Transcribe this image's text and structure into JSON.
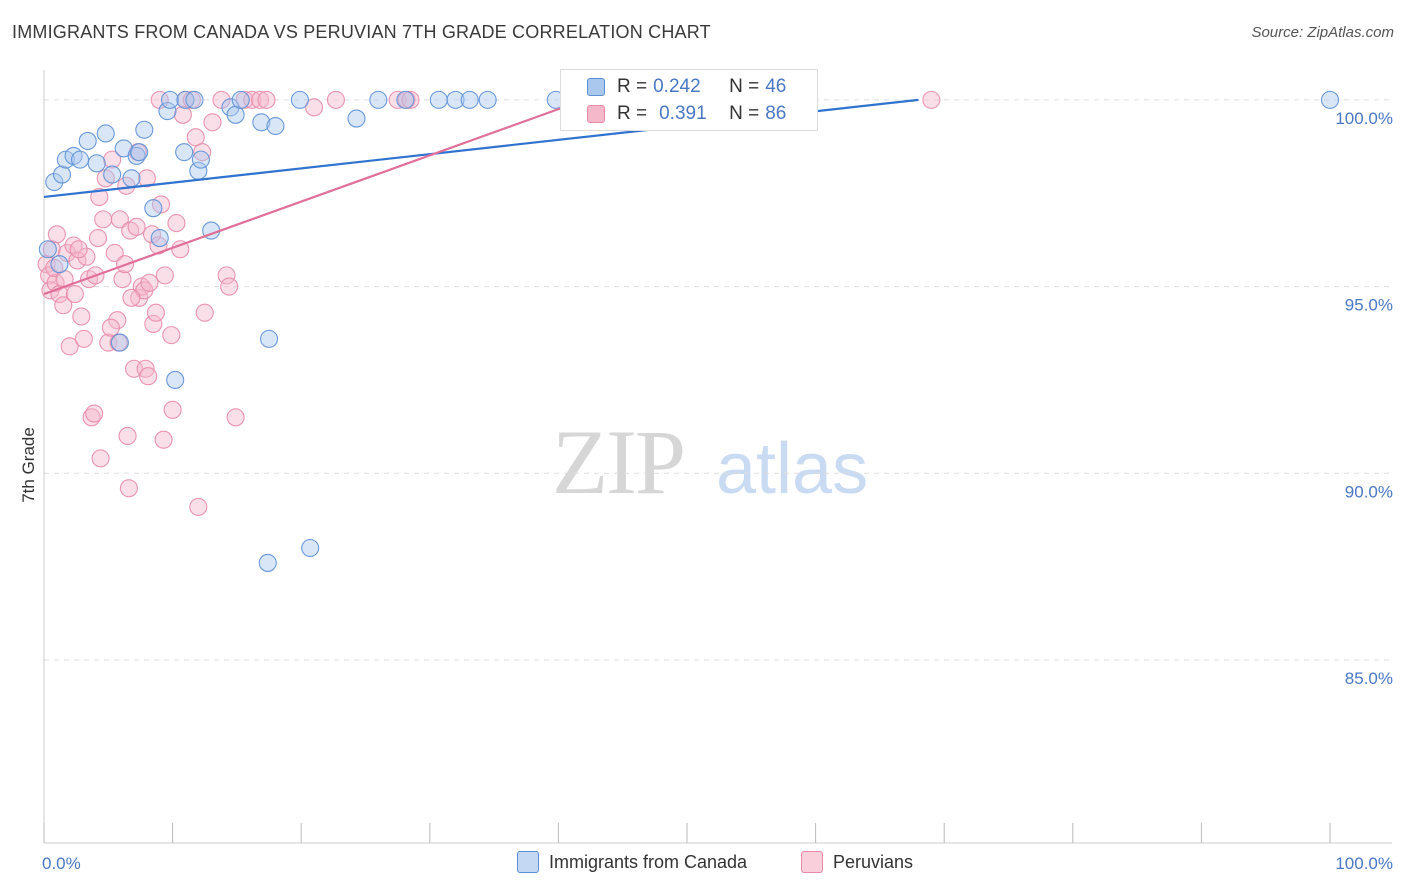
{
  "title": "IMMIGRANTS FROM CANADA VS PERUVIAN 7TH GRADE CORRELATION CHART",
  "source": "Source: ZipAtlas.com",
  "watermark": {
    "zip": "ZIP",
    "atlas": "atlas"
  },
  "legend": [
    {
      "r_label": "R = ",
      "r_value": "0.242",
      "n_label": "N = ",
      "n_value": "46"
    },
    {
      "r_label": "R = ",
      "r_value": "0.391",
      "n_label": "N = ",
      "n_value": "86"
    }
  ],
  "bottom_legend": [
    "Immigrants from Canada",
    "Peruvians"
  ],
  "colors": {
    "blue_fill": "#aac7ee",
    "blue_stroke": "#5b8fd6",
    "blue_line": "#2f73cf",
    "pink_fill": "#f5b8cb",
    "pink_stroke": "#e88aa8",
    "pink_line": "#e0709a",
    "grid": "#dddddd",
    "tick_text": "#4a78c4"
  },
  "chart_data": {
    "type": "scatter",
    "title": "IMMIGRANTS FROM CANADA VS PERUVIAN 7TH GRADE CORRELATION CHART",
    "xlabel": "",
    "ylabel": "7th Grade",
    "xlim": [
      0,
      100
    ],
    "ylim": [
      80.1,
      100.8
    ],
    "x_tick_labels": [
      "0.0%",
      "100.0%"
    ],
    "y_ticks": [
      100,
      95,
      90,
      85
    ],
    "y_tick_labels": [
      "100.0%",
      "95.0%",
      "90.0%",
      "85.0%"
    ],
    "grid": true,
    "series": [
      {
        "name": "Immigrants from Canada",
        "r": 0.242,
        "n": 46,
        "trend": {
          "x": [
            0,
            68
          ],
          "y": [
            97.4,
            100
          ]
        },
        "points": [
          [
            0.3,
            96.0
          ],
          [
            0.8,
            97.8
          ],
          [
            1.4,
            98.0
          ],
          [
            1.7,
            98.4
          ],
          [
            2.3,
            98.5
          ],
          [
            2.8,
            98.4
          ],
          [
            3.4,
            98.9
          ],
          [
            4.1,
            98.3
          ],
          [
            4.8,
            99.1
          ],
          [
            5.3,
            98.0
          ],
          [
            6.2,
            98.7
          ],
          [
            6.8,
            97.9
          ],
          [
            7.2,
            98.5
          ],
          [
            7.8,
            99.2
          ],
          [
            8.5,
            97.1
          ],
          [
            9.0,
            96.3
          ],
          [
            9.6,
            99.7
          ],
          [
            9.8,
            100.0
          ],
          [
            10.9,
            98.6
          ],
          [
            11.0,
            100.0
          ],
          [
            11.7,
            100.0
          ],
          [
            12.0,
            98.1
          ],
          [
            12.2,
            98.4
          ],
          [
            13.0,
            96.5
          ],
          [
            14.5,
            99.8
          ],
          [
            14.9,
            99.6
          ],
          [
            15.3,
            100.0
          ],
          [
            16.9,
            99.4
          ],
          [
            17.5,
            93.6
          ],
          [
            17.4,
            87.6
          ],
          [
            18.0,
            99.3
          ],
          [
            20.7,
            88.0
          ],
          [
            24.3,
            99.5
          ],
          [
            26.0,
            100.0
          ],
          [
            28.1,
            100.0
          ],
          [
            30.7,
            100.0
          ],
          [
            32.0,
            100.0
          ],
          [
            33.1,
            100.0
          ],
          [
            34.5,
            100.0
          ],
          [
            39.8,
            100.0
          ],
          [
            5.9,
            93.5
          ],
          [
            10.2,
            92.5
          ],
          [
            7.4,
            98.6
          ],
          [
            19.9,
            100.0
          ],
          [
            1.2,
            95.6
          ],
          [
            100.0,
            100.0
          ]
        ]
      },
      {
        "name": "Peruvians",
        "r": 0.391,
        "n": 86,
        "trend": {
          "x": [
            0,
            42
          ],
          "y": [
            94.8,
            100
          ]
        },
        "points": [
          [
            0.2,
            95.6
          ],
          [
            0.4,
            95.3
          ],
          [
            0.5,
            94.9
          ],
          [
            0.6,
            96.0
          ],
          [
            0.9,
            95.1
          ],
          [
            1.2,
            94.8
          ],
          [
            1.5,
            94.5
          ],
          [
            1.8,
            95.9
          ],
          [
            2.0,
            93.4
          ],
          [
            2.3,
            96.1
          ],
          [
            2.6,
            95.7
          ],
          [
            2.9,
            94.2
          ],
          [
            3.1,
            93.6
          ],
          [
            3.5,
            95.2
          ],
          [
            3.7,
            91.5
          ],
          [
            3.9,
            91.6
          ],
          [
            4.2,
            96.3
          ],
          [
            4.3,
            97.4
          ],
          [
            4.4,
            90.4
          ],
          [
            4.6,
            96.8
          ],
          [
            4.8,
            97.9
          ],
          [
            5.0,
            93.5
          ],
          [
            5.3,
            98.4
          ],
          [
            5.5,
            95.9
          ],
          [
            5.7,
            94.1
          ],
          [
            5.9,
            96.8
          ],
          [
            6.1,
            95.2
          ],
          [
            6.4,
            97.7
          ],
          [
            6.5,
            91.0
          ],
          [
            6.6,
            89.6
          ],
          [
            6.7,
            96.5
          ],
          [
            7.0,
            92.8
          ],
          [
            7.2,
            96.6
          ],
          [
            7.3,
            98.6
          ],
          [
            7.4,
            94.7
          ],
          [
            7.6,
            95.0
          ],
          [
            7.8,
            94.9
          ],
          [
            7.9,
            92.8
          ],
          [
            8.0,
            97.9
          ],
          [
            8.1,
            92.6
          ],
          [
            8.2,
            95.1
          ],
          [
            8.4,
            96.4
          ],
          [
            8.5,
            94.0
          ],
          [
            8.7,
            94.3
          ],
          [
            9.0,
            100.0
          ],
          [
            9.1,
            97.2
          ],
          [
            9.3,
            90.9
          ],
          [
            9.4,
            95.3
          ],
          [
            9.9,
            93.7
          ],
          [
            10.0,
            91.7
          ],
          [
            10.3,
            96.7
          ],
          [
            10.6,
            96.0
          ],
          [
            11.0,
            100.0
          ],
          [
            11.5,
            100.0
          ],
          [
            11.8,
            99.0
          ],
          [
            12.0,
            89.1
          ],
          [
            12.3,
            98.6
          ],
          [
            12.5,
            94.3
          ],
          [
            13.8,
            100.0
          ],
          [
            14.2,
            95.3
          ],
          [
            14.4,
            95.0
          ],
          [
            14.9,
            91.5
          ],
          [
            15.6,
            100.0
          ],
          [
            16.2,
            100.0
          ],
          [
            16.8,
            100.0
          ],
          [
            17.3,
            100.0
          ],
          [
            22.7,
            100.0
          ],
          [
            27.5,
            100.0
          ],
          [
            28.2,
            100.0
          ],
          [
            28.5,
            100.0
          ],
          [
            0.8,
            95.5
          ],
          [
            1.0,
            96.4
          ],
          [
            2.4,
            94.8
          ],
          [
            3.3,
            95.8
          ],
          [
            5.2,
            93.9
          ],
          [
            5.8,
            93.5
          ],
          [
            6.8,
            94.7
          ],
          [
            1.6,
            95.2
          ],
          [
            2.7,
            96.0
          ],
          [
            4.0,
            95.3
          ],
          [
            6.3,
            95.6
          ],
          [
            8.9,
            96.1
          ],
          [
            10.8,
            99.6
          ],
          [
            13.1,
            99.4
          ],
          [
            21.0,
            99.8
          ],
          [
            69.0,
            100.0
          ]
        ]
      }
    ]
  }
}
